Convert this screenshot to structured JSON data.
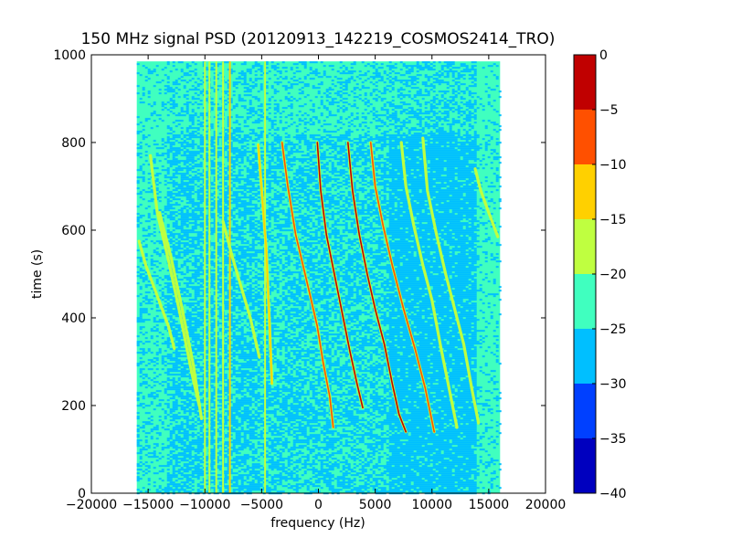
{
  "chart_data": {
    "type": "heatmap",
    "title": "150 MHz signal PSD (20120913_142219_COSMOS2414_TRO)",
    "xlabel": "frequency (Hz)",
    "ylabel": "time (s)",
    "xlim": [
      -20000,
      20000
    ],
    "ylim": [
      0,
      1000
    ],
    "x_ticks": [
      -20000,
      -15000,
      -10000,
      -5000,
      0,
      5000,
      10000,
      15000,
      20000
    ],
    "y_ticks": [
      0,
      200,
      400,
      600,
      800,
      1000
    ],
    "data_extent": {
      "x": [
        -16000,
        16000
      ],
      "y": [
        0,
        985
      ]
    },
    "colorbar": {
      "range": [
        -40,
        0
      ],
      "ticks": [
        0,
        -5,
        -10,
        -15,
        -20,
        -25,
        -30,
        -35,
        -40
      ],
      "levels": [
        {
          "from": -40,
          "to": -35,
          "color": "#0000bf"
        },
        {
          "from": -35,
          "to": -30,
          "color": "#0040ff"
        },
        {
          "from": -30,
          "to": -25,
          "color": "#00bfff"
        },
        {
          "from": -25,
          "to": -20,
          "color": "#40ffbf"
        },
        {
          "from": -20,
          "to": -15,
          "color": "#bfff40"
        },
        {
          "from": -15,
          "to": -10,
          "color": "#ffd000"
        },
        {
          "from": -10,
          "to": -5,
          "color": "#ff5000"
        },
        {
          "from": -5,
          "to": 0,
          "color": "#c00000"
        }
      ]
    },
    "background_level_color": "#40ffbf",
    "low_level_color": "#00bfff",
    "signal_traces": [
      {
        "points": [
          [
            -15800,
            575
          ],
          [
            -15200,
            520
          ],
          [
            -14200,
            450
          ],
          [
            -13200,
            380
          ],
          [
            -12700,
            330
          ]
        ],
        "level": -17
      },
      {
        "points": [
          [
            -14800,
            770
          ],
          [
            -14200,
            640
          ],
          [
            -13200,
            530
          ],
          [
            -12200,
            410
          ],
          [
            -11200,
            280
          ],
          [
            -10500,
            200
          ]
        ],
        "level": -17
      },
      {
        "points": [
          [
            -14000,
            640
          ],
          [
            -13000,
            540
          ],
          [
            -12000,
            420
          ],
          [
            -11000,
            290
          ],
          [
            -10300,
            170
          ]
        ],
        "level": -17
      },
      {
        "points": [
          [
            -8400,
            620
          ],
          [
            -7600,
            540
          ],
          [
            -6800,
            470
          ],
          [
            -6000,
            400
          ],
          [
            -5200,
            310
          ]
        ],
        "level": -17
      },
      {
        "points": [
          [
            -5300,
            795
          ],
          [
            -5000,
            690
          ],
          [
            -4600,
            560
          ],
          [
            -4300,
            380
          ],
          [
            -4100,
            250
          ]
        ],
        "level": -13
      },
      {
        "points": [
          [
            -3200,
            800
          ],
          [
            -2700,
            700
          ],
          [
            -2000,
            590
          ],
          [
            -900,
            470
          ],
          [
            -100,
            380
          ],
          [
            400,
            300
          ],
          [
            1000,
            220
          ],
          [
            1300,
            150
          ]
        ],
        "level": -8
      },
      {
        "points": [
          [
            -100,
            800
          ],
          [
            200,
            690
          ],
          [
            700,
            590
          ],
          [
            1400,
            500
          ],
          [
            2100,
            410
          ],
          [
            2800,
            320
          ],
          [
            3400,
            250
          ],
          [
            3900,
            195
          ]
        ],
        "level": -3
      },
      {
        "points": [
          [
            2600,
            800
          ],
          [
            3000,
            690
          ],
          [
            3600,
            590
          ],
          [
            4300,
            500
          ],
          [
            5000,
            420
          ],
          [
            5800,
            340
          ],
          [
            6500,
            250
          ],
          [
            7100,
            180
          ],
          [
            7700,
            140
          ]
        ],
        "level": -3
      },
      {
        "points": [
          [
            4600,
            800
          ],
          [
            5000,
            700
          ],
          [
            5700,
            610
          ],
          [
            6500,
            520
          ],
          [
            7500,
            420
          ],
          [
            8500,
            330
          ],
          [
            9400,
            240
          ],
          [
            10200,
            140
          ]
        ],
        "level": -8
      },
      {
        "points": [
          [
            7300,
            800
          ],
          [
            7700,
            700
          ],
          [
            8400,
            610
          ],
          [
            9200,
            520
          ],
          [
            10000,
            440
          ],
          [
            10800,
            330
          ],
          [
            11500,
            240
          ],
          [
            12200,
            150
          ]
        ],
        "level": -17
      },
      {
        "points": [
          [
            9200,
            810
          ],
          [
            9600,
            690
          ],
          [
            10400,
            590
          ],
          [
            11200,
            500
          ],
          [
            12000,
            420
          ],
          [
            12800,
            340
          ],
          [
            13500,
            240
          ],
          [
            14100,
            160
          ]
        ],
        "level": -17
      },
      {
        "points": [
          [
            13800,
            740
          ],
          [
            14300,
            690
          ],
          [
            15000,
            640
          ],
          [
            15800,
            585
          ]
        ],
        "level": -17
      }
    ],
    "vertical_lines": [
      {
        "x": -9000,
        "level": -17
      },
      {
        "x": -8400,
        "level": -17
      },
      {
        "x": -7800,
        "level": -13
      },
      {
        "x": -4700,
        "level": -17
      },
      {
        "x": -10000,
        "level": -17
      },
      {
        "x": -9600,
        "level": -17
      }
    ]
  }
}
